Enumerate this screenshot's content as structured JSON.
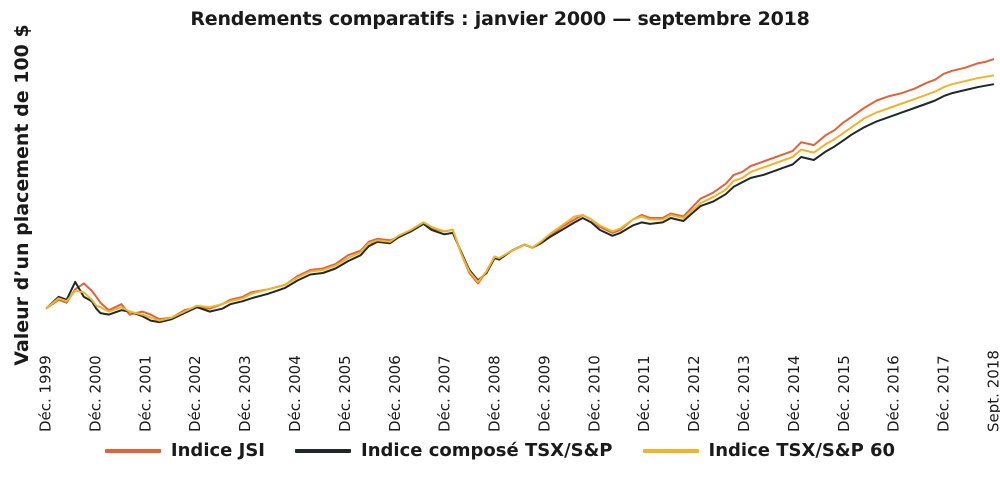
{
  "chart_data": {
    "type": "line",
    "title": "Rendements comparatifs : janvier 2000 — septembre 2018",
    "ylabel": "Valeur d’un placement de 100 $",
    "xlabel": "",
    "grid": false,
    "legend_position": "bottom",
    "x_ticks": [
      "Déc. 1999",
      "Déc. 2000",
      "Déc. 2001",
      "Déc. 2002",
      "Déc. 2003",
      "Déc. 2004",
      "Déc. 2005",
      "Déc. 2006",
      "Déc. 2007",
      "Déc. 2008",
      "Déc. 2009",
      "Déc. 2010",
      "Déc. 2011",
      "Déc. 2012",
      "Déc. 2013",
      "Déc. 2014",
      "Déc. 2015",
      "Déc. 2016",
      "Déc. 2017",
      "Sept. 2018"
    ],
    "x": [
      1999.92,
      2000.17,
      2000.33,
      2000.5,
      2000.67,
      2000.83,
      2000.92,
      2001.0,
      2001.17,
      2001.42,
      2001.58,
      2001.83,
      2002.0,
      2002.17,
      2002.42,
      2002.67,
      2002.92,
      2003.17,
      2003.42,
      2003.58,
      2003.83,
      2004.0,
      2004.33,
      2004.67,
      2004.92,
      2005.17,
      2005.42,
      2005.67,
      2005.92,
      2006.17,
      2006.33,
      2006.5,
      2006.75,
      2006.92,
      2007.17,
      2007.42,
      2007.58,
      2007.83,
      2008.0,
      2008.17,
      2008.33,
      2008.5,
      2008.67,
      2008.83,
      2008.92,
      2009.17,
      2009.42,
      2009.58,
      2009.75,
      2009.92,
      2010.17,
      2010.42,
      2010.58,
      2010.75,
      2010.92,
      2011.17,
      2011.33,
      2011.58,
      2011.75,
      2011.92,
      2012.17,
      2012.33,
      2012.58,
      2012.75,
      2012.92,
      2013.17,
      2013.42,
      2013.58,
      2013.75,
      2013.92,
      2014.17,
      2014.42,
      2014.58,
      2014.75,
      2014.92,
      2015.17,
      2015.42,
      2015.58,
      2015.75,
      2015.92,
      2016.17,
      2016.42,
      2016.67,
      2016.92,
      2017.17,
      2017.42,
      2017.58,
      2017.75,
      2017.92,
      2018.17,
      2018.42,
      2018.58,
      2018.75
    ],
    "series": [
      {
        "name": "Indice JSI",
        "color": "#e0633a",
        "values": [
          100,
          106,
          104,
          113,
          117,
          112,
          108,
          104,
          99,
          103,
          96,
          98,
          96,
          93,
          94,
          99,
          101,
          100,
          103,
          106,
          108,
          111,
          113,
          116,
          122,
          126,
          127,
          130,
          136,
          139,
          145,
          147,
          146,
          148,
          153,
          158,
          154,
          152,
          153,
          137,
          124,
          117,
          125,
          135,
          133,
          139,
          143,
          141,
          145,
          149,
          155,
          160,
          163,
          160,
          155,
          151,
          153,
          160,
          163,
          161,
          161,
          164,
          162,
          168,
          174,
          178,
          184,
          190,
          192,
          196,
          199,
          202,
          204,
          206,
          212,
          210,
          217,
          220,
          225,
          229,
          235,
          240,
          243,
          245,
          248,
          252,
          254,
          258,
          260,
          262,
          265,
          266,
          268
        ]
      },
      {
        "name": "Indice composé TSX/S&P",
        "color": "#1e2a2a",
        "values": [
          100,
          108,
          106,
          118,
          108,
          105,
          100,
          97,
          96,
          99,
          98,
          95,
          92,
          91,
          93,
          97,
          101,
          98,
          100,
          103,
          105,
          107,
          110,
          114,
          119,
          123,
          124,
          127,
          132,
          136,
          142,
          145,
          144,
          148,
          152,
          157,
          153,
          150,
          151,
          138,
          126,
          119,
          124,
          134,
          133,
          139,
          143,
          141,
          144,
          148,
          153,
          158,
          161,
          158,
          153,
          149,
          151,
          156,
          158,
          157,
          158,
          161,
          159,
          164,
          169,
          172,
          177,
          182,
          185,
          188,
          190,
          193,
          195,
          197,
          202,
          200,
          206,
          209,
          213,
          217,
          222,
          226,
          229,
          232,
          235,
          238,
          240,
          243,
          245,
          247,
          249,
          250,
          251
        ]
      },
      {
        "name": "Indice TSX/S&P 60",
        "color": "#f0b428",
        "values": [
          100,
          107,
          105,
          112,
          111,
          106,
          102,
          101,
          98,
          101,
          98,
          96,
          94,
          92,
          94,
          98,
          102,
          101,
          103,
          105,
          107,
          110,
          113,
          116,
          121,
          125,
          126,
          129,
          134,
          138,
          144,
          146,
          145,
          149,
          153,
          158,
          155,
          152,
          153,
          137,
          125,
          118,
          125,
          135,
          134,
          139,
          143,
          141,
          145,
          150,
          156,
          162,
          163,
          160,
          156,
          152,
          154,
          160,
          162,
          160,
          160,
          163,
          161,
          166,
          171,
          175,
          180,
          186,
          188,
          192,
          195,
          198,
          200,
          202,
          207,
          205,
          211,
          214,
          218,
          222,
          228,
          232,
          235,
          238,
          241,
          244,
          246,
          249,
          251,
          253,
          255,
          256,
          257
        ]
      }
    ]
  }
}
